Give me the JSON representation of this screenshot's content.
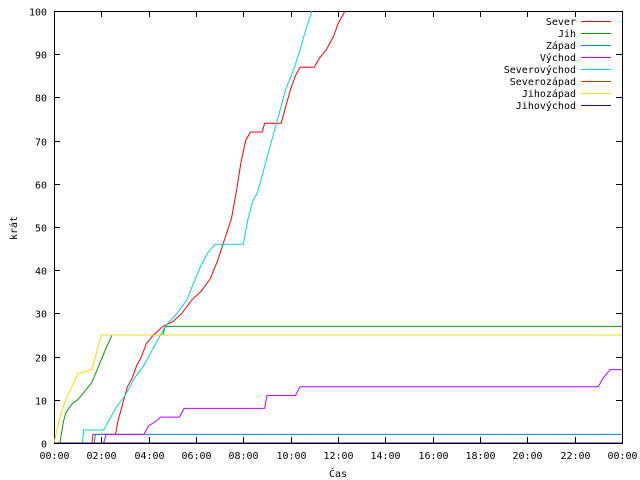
{
  "chart_data": {
    "type": "line",
    "title": "",
    "xlabel": "Čas",
    "ylabel": "krát",
    "xlim": [
      0,
      24
    ],
    "ylim": [
      0,
      100
    ],
    "x_unit": "hours",
    "x_ticks": [
      "00:00",
      "02:00",
      "04:00",
      "06:00",
      "08:00",
      "10:00",
      "12:00",
      "14:00",
      "16:00",
      "18:00",
      "20:00",
      "22:00",
      "00:00"
    ],
    "y_ticks": [
      "0",
      "10",
      "20",
      "30",
      "40",
      "50",
      "60",
      "70",
      "80",
      "90",
      "100"
    ],
    "grid": false,
    "legend_position": "top-right",
    "series": [
      {
        "name": "Sever",
        "color": "#ff0000",
        "points": [
          [
            1.6,
            0
          ],
          [
            1.65,
            2
          ],
          [
            2.6,
            2
          ],
          [
            2.7,
            5
          ],
          [
            2.9,
            9
          ],
          [
            3.1,
            13
          ],
          [
            3.3,
            15
          ],
          [
            3.5,
            18
          ],
          [
            3.7,
            20
          ],
          [
            3.9,
            23
          ],
          [
            4.2,
            25
          ],
          [
            4.6,
            27
          ],
          [
            5.0,
            28
          ],
          [
            5.4,
            30
          ],
          [
            5.8,
            33
          ],
          [
            6.2,
            35
          ],
          [
            6.6,
            38
          ],
          [
            6.9,
            42
          ],
          [
            7.2,
            47
          ],
          [
            7.5,
            52
          ],
          [
            7.7,
            58
          ],
          [
            7.9,
            65
          ],
          [
            8.1,
            70
          ],
          [
            8.3,
            72
          ],
          [
            8.8,
            72
          ],
          [
            8.9,
            74
          ],
          [
            9.6,
            74
          ],
          [
            9.8,
            78
          ],
          [
            10.0,
            82
          ],
          [
            10.2,
            85
          ],
          [
            10.4,
            87
          ],
          [
            11.0,
            87
          ],
          [
            11.2,
            89
          ],
          [
            11.5,
            91
          ],
          [
            11.8,
            94
          ],
          [
            12.0,
            97
          ],
          [
            12.3,
            100
          ]
        ]
      },
      {
        "name": "Jih",
        "color": "#00a000",
        "points": [
          [
            0.25,
            0
          ],
          [
            0.4,
            5
          ],
          [
            0.5,
            7
          ],
          [
            0.75,
            9
          ],
          [
            1.0,
            10
          ],
          [
            1.3,
            12
          ],
          [
            1.6,
            14
          ],
          [
            1.9,
            18
          ],
          [
            2.2,
            22
          ],
          [
            2.45,
            25
          ],
          [
            2.6,
            25
          ],
          [
            4.6,
            25
          ],
          [
            4.7,
            27
          ],
          [
            24,
            27
          ]
        ]
      },
      {
        "name": "Západ",
        "color": "#0080ff",
        "points": [
          [
            0,
            0
          ],
          [
            1.7,
            0
          ],
          [
            1.75,
            2
          ],
          [
            24,
            2
          ]
        ]
      },
      {
        "name": "Východ",
        "color": "#c000ff",
        "points": [
          [
            2.1,
            0
          ],
          [
            2.2,
            2
          ],
          [
            3.8,
            2
          ],
          [
            4.0,
            4
          ],
          [
            4.3,
            5
          ],
          [
            4.5,
            6
          ],
          [
            5.3,
            6
          ],
          [
            5.5,
            8
          ],
          [
            8.9,
            8
          ],
          [
            9.0,
            11
          ],
          [
            10.2,
            11
          ],
          [
            10.4,
            13
          ],
          [
            23.0,
            13
          ],
          [
            23.2,
            15
          ],
          [
            23.5,
            17
          ],
          [
            24,
            17
          ]
        ]
      },
      {
        "name": "Severovýchod",
        "color": "#00d8d8",
        "points": [
          [
            1.2,
            0
          ],
          [
            1.25,
            3
          ],
          [
            2.1,
            3
          ],
          [
            2.3,
            5
          ],
          [
            2.6,
            8
          ],
          [
            3.0,
            11
          ],
          [
            3.4,
            15
          ],
          [
            3.8,
            18
          ],
          [
            4.3,
            23
          ],
          [
            4.7,
            27
          ],
          [
            5.2,
            30
          ],
          [
            5.6,
            33
          ],
          [
            5.9,
            37
          ],
          [
            6.2,
            41
          ],
          [
            6.5,
            44
          ],
          [
            6.8,
            46
          ],
          [
            8.0,
            46
          ],
          [
            8.2,
            52
          ],
          [
            8.4,
            56
          ],
          [
            8.6,
            58
          ],
          [
            8.8,
            62
          ],
          [
            9.0,
            66
          ],
          [
            9.2,
            70
          ],
          [
            9.4,
            74
          ],
          [
            9.6,
            78
          ],
          [
            9.8,
            82
          ],
          [
            10.1,
            86
          ],
          [
            10.4,
            91
          ],
          [
            10.6,
            95
          ],
          [
            10.9,
            100
          ]
        ]
      },
      {
        "name": "Severozápad",
        "color": "#c04000",
        "points": [
          [
            0,
            0
          ],
          [
            24,
            0
          ]
        ]
      },
      {
        "name": "Jihozápad",
        "color": "#f0e000",
        "points": [
          [
            0,
            0
          ],
          [
            0.25,
            6
          ],
          [
            0.5,
            10
          ],
          [
            0.75,
            13
          ],
          [
            1.0,
            16
          ],
          [
            1.6,
            17
          ],
          [
            1.75,
            20
          ],
          [
            2.0,
            25
          ],
          [
            24,
            25
          ]
        ]
      },
      {
        "name": "Jihovýchod",
        "color": "#4000a0",
        "points": [
          [
            0,
            0
          ],
          [
            24,
            0
          ]
        ]
      }
    ]
  }
}
